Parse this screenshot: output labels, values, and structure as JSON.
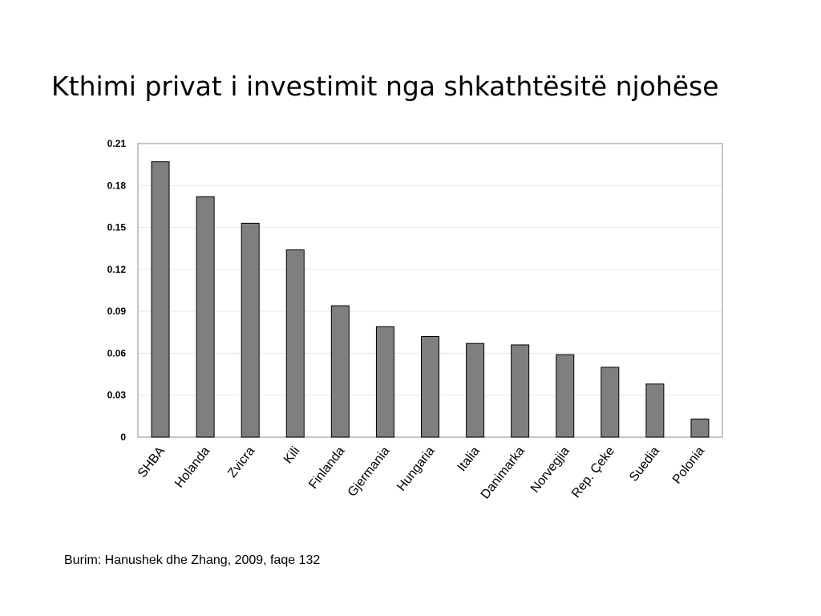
{
  "slide": {
    "title": "Kthimi privat i investimit nga shkathtësitë njohëse",
    "source": "Burim: Hanushek dhe Zhang, 2009, faqe 132"
  },
  "chart_data": {
    "type": "bar",
    "title": "",
    "xlabel": "",
    "ylabel": "",
    "categories": [
      "SHBA",
      "Holanda",
      "Zvicra",
      "Kili",
      "Finlanda",
      "Gjermania",
      "Hungaria",
      "Italia",
      "Danimarka",
      "Norvegjia",
      "Rep. Çeke",
      "Suedia",
      "Polonia"
    ],
    "values": [
      0.197,
      0.172,
      0.153,
      0.134,
      0.094,
      0.079,
      0.072,
      0.067,
      0.066,
      0.059,
      0.05,
      0.038,
      0.013
    ],
    "ylim": [
      0,
      0.21
    ],
    "yticks": [
      0,
      0.03,
      0.06,
      0.09,
      0.12,
      0.15,
      0.18,
      0.21
    ],
    "ytick_labels": [
      "0",
      "0.03",
      "0.06",
      "0.09",
      "0.12",
      "0.15",
      "0.18",
      "0.21"
    ],
    "grid": true,
    "colors": {
      "bar": "#7f7f7f",
      "bar_edge": "#000000",
      "grid": "#e8e8e8",
      "frame": "#b3b3b3",
      "axis": "#000000"
    }
  }
}
